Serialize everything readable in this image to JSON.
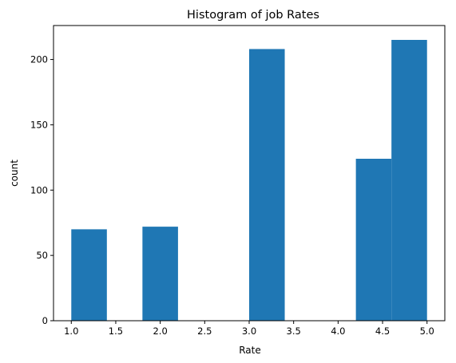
{
  "chart_data": {
    "type": "bar",
    "title": "Histogram of job Rates",
    "xlabel": "Rate",
    "ylabel": "count",
    "xlim": [
      0.8,
      5.2
    ],
    "ylim": [
      0,
      226
    ],
    "xticks": [
      1.0,
      1.5,
      2.0,
      2.5,
      3.0,
      3.5,
      4.0,
      4.5,
      5.0
    ],
    "xtick_labels": [
      "1.0",
      "1.5",
      "2.0",
      "2.5",
      "3.0",
      "3.5",
      "4.0",
      "4.5",
      "5.0"
    ],
    "yticks": [
      0,
      50,
      100,
      150,
      200
    ],
    "ytick_labels": [
      "0",
      "50",
      "100",
      "150",
      "200"
    ],
    "bin_edges": [
      1.0,
      1.4,
      1.8,
      2.2,
      2.6,
      3.0,
      3.4,
      3.8,
      4.2,
      4.6,
      5.0
    ],
    "values": [
      70,
      0,
      72,
      0,
      0,
      208,
      0,
      0,
      124,
      215
    ],
    "color": "#1f77b4",
    "grid": false,
    "legend": "none"
  }
}
